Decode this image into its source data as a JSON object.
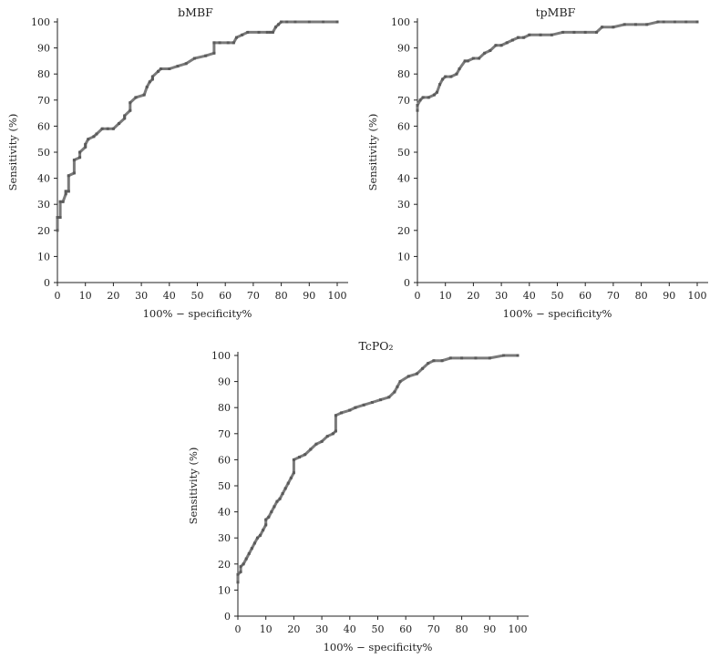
{
  "chart_data": [
    {
      "type": "line",
      "title": "bMBF",
      "xlabel": "100% − specificity%",
      "ylabel": "Sensitivity (%)",
      "xlim": [
        0,
        100
      ],
      "ylim": [
        0,
        100
      ],
      "xticks": [
        0,
        10,
        20,
        30,
        40,
        50,
        60,
        70,
        80,
        90,
        100
      ],
      "yticks": [
        0,
        10,
        20,
        30,
        40,
        50,
        60,
        70,
        80,
        90,
        100
      ],
      "grid": false,
      "x": [
        0,
        0,
        1,
        1,
        2,
        3,
        3,
        4,
        4,
        6,
        6,
        8,
        8,
        10,
        10,
        11,
        13,
        14,
        16,
        18,
        20,
        22,
        24,
        24,
        26,
        26,
        28,
        28,
        31,
        32,
        33,
        34,
        34,
        36,
        37,
        40,
        43,
        46,
        49,
        53,
        56,
        56,
        58,
        61,
        63,
        64,
        66,
        68,
        72,
        75,
        76,
        77,
        78,
        79,
        80,
        82,
        85,
        90,
        95,
        100
      ],
      "y": [
        20,
        25,
        25,
        31,
        31,
        34,
        35,
        35,
        41,
        42,
        47,
        48,
        50,
        52,
        53,
        55,
        56,
        57,
        59,
        59,
        59,
        61,
        63,
        64,
        66,
        69,
        71,
        71,
        72,
        75,
        77,
        78,
        79,
        81,
        82,
        82,
        83,
        84,
        86,
        87,
        88,
        92,
        92,
        92,
        92,
        94,
        95,
        96,
        96,
        96,
        96,
        96,
        98,
        99,
        100,
        100,
        100,
        100,
        100,
        100
      ]
    },
    {
      "type": "line",
      "title": "tpMBF",
      "xlabel": "100% − specificity%",
      "ylabel": "Sensitivity (%)",
      "xlim": [
        0,
        100
      ],
      "ylim": [
        0,
        100
      ],
      "xticks": [
        0,
        10,
        20,
        30,
        40,
        50,
        60,
        70,
        80,
        90,
        100
      ],
      "yticks": [
        0,
        10,
        20,
        30,
        40,
        50,
        60,
        70,
        80,
        90,
        100
      ],
      "grid": false,
      "x": [
        0,
        0,
        1,
        2,
        4,
        6,
        7,
        8,
        9,
        10,
        12,
        14,
        15,
        17,
        18,
        20,
        22,
        24,
        26,
        28,
        30,
        32,
        34,
        36,
        38,
        40,
        44,
        48,
        52,
        56,
        60,
        64,
        66,
        70,
        74,
        78,
        82,
        86,
        88,
        92,
        96,
        100
      ],
      "y": [
        66,
        68,
        70,
        71,
        71,
        72,
        73,
        76,
        78,
        79,
        79,
        80,
        82,
        85,
        85,
        86,
        86,
        88,
        89,
        91,
        91,
        92,
        93,
        94,
        94,
        95,
        95,
        95,
        96,
        96,
        96,
        96,
        98,
        98,
        99,
        99,
        99,
        100,
        100,
        100,
        100,
        100
      ]
    },
    {
      "type": "line",
      "title": "TcPO₂",
      "xlabel": "100% − specificity%",
      "ylabel": "Sensitivity (%)",
      "xlim": [
        0,
        100
      ],
      "ylim": [
        0,
        100
      ],
      "xticks": [
        0,
        10,
        20,
        30,
        40,
        50,
        60,
        70,
        80,
        90,
        100
      ],
      "yticks": [
        0,
        10,
        20,
        30,
        40,
        50,
        60,
        70,
        80,
        90,
        100
      ],
      "grid": false,
      "x": [
        0,
        0,
        1,
        1,
        2,
        3,
        4,
        5,
        6,
        7,
        8,
        9,
        10,
        10,
        11,
        12,
        13,
        14,
        15,
        16,
        17,
        18,
        19,
        20,
        20,
        22,
        24,
        26,
        28,
        30,
        32,
        34,
        35,
        35,
        37,
        40,
        42,
        45,
        48,
        51,
        54,
        56,
        57,
        58,
        61,
        64,
        66,
        68,
        70,
        73,
        76,
        80,
        85,
        90,
        95,
        100
      ],
      "y": [
        13,
        16,
        17,
        19,
        20,
        22,
        24,
        26,
        28,
        30,
        31,
        33,
        35,
        37,
        38,
        40,
        42,
        44,
        45,
        47,
        49,
        51,
        53,
        55,
        60,
        61,
        62,
        64,
        66,
        67,
        69,
        70,
        71,
        77,
        78,
        79,
        80,
        81,
        82,
        83,
        84,
        86,
        88,
        90,
        92,
        93,
        95,
        97,
        98,
        98,
        99,
        99,
        99,
        99,
        100,
        100
      ]
    }
  ]
}
